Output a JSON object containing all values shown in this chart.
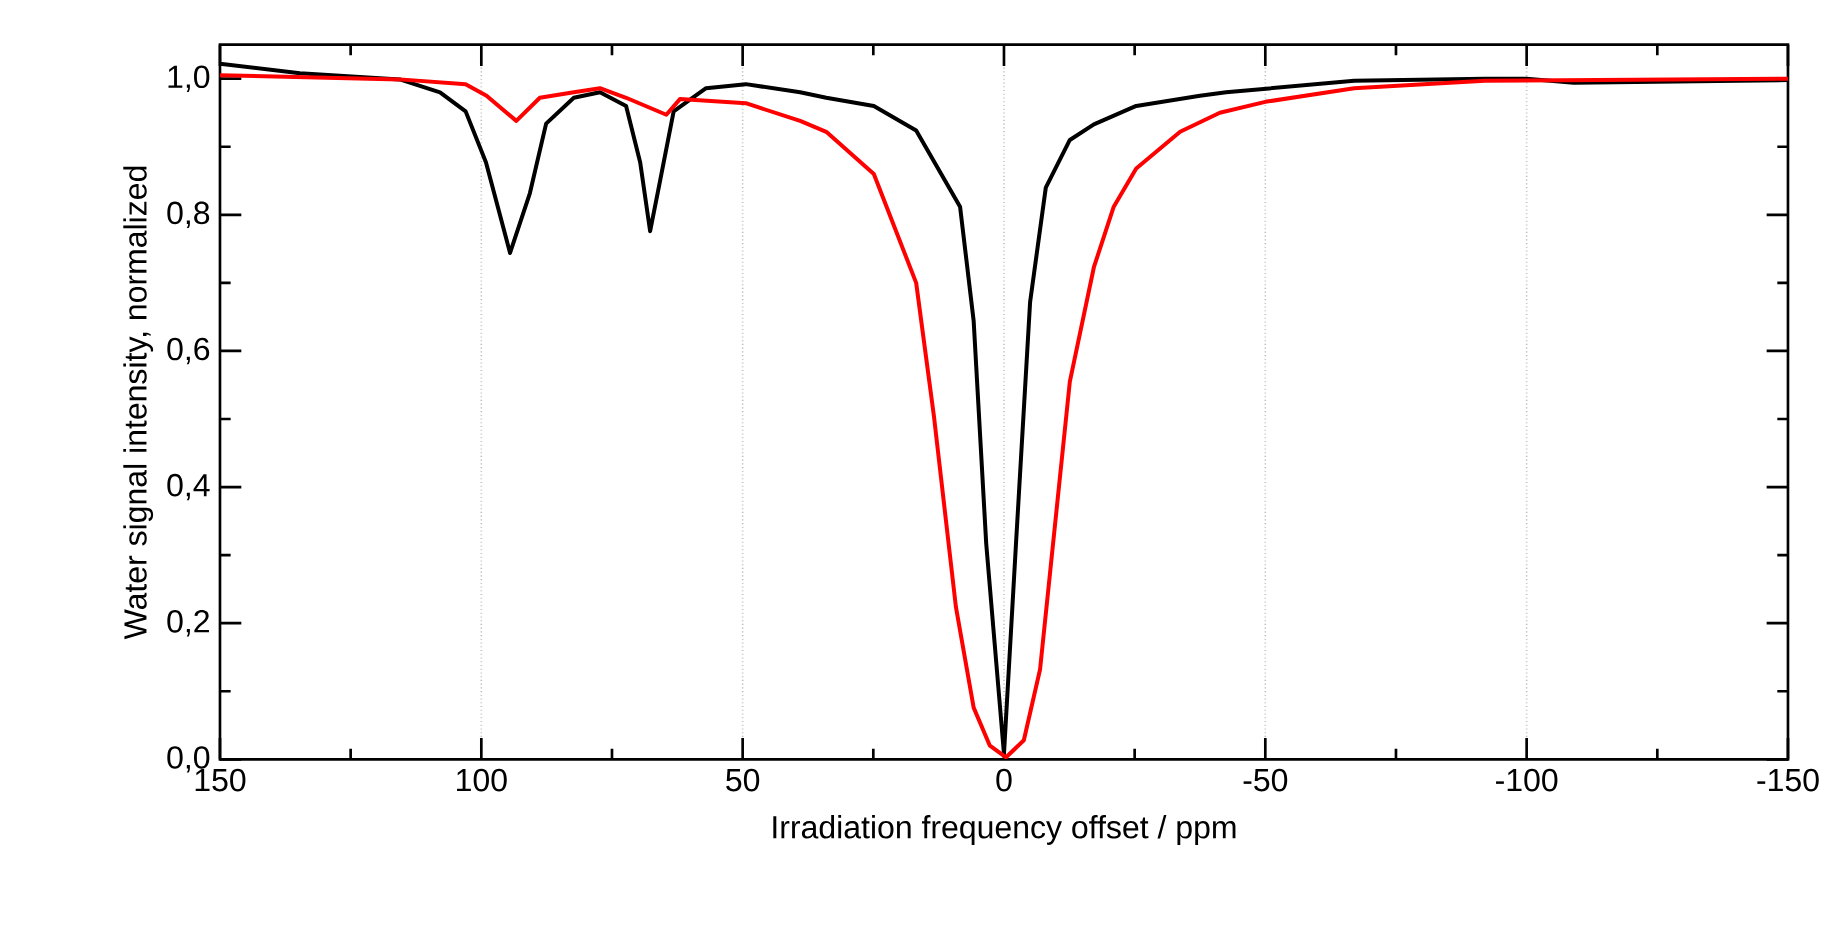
{
  "chart_data": {
    "type": "line",
    "xlabel": "Irradiation frequency offset / ppm",
    "ylabel": "Water signal intensity, normalized",
    "xlim": [
      150,
      -150
    ],
    "ylim": [
      0,
      1.05
    ],
    "xticks": [
      150,
      100,
      50,
      0,
      -50,
      -100,
      -150
    ],
    "yticks": [
      {
        "value": 0,
        "label": "0,0"
      },
      {
        "value": 0.2,
        "label": "0,2"
      },
      {
        "value": 0.4,
        "label": "0,4"
      },
      {
        "value": 0.6,
        "label": "0,6"
      },
      {
        "value": 0.8,
        "label": "0,8"
      },
      {
        "value": 1.0,
        "label": "1,0"
      }
    ],
    "grid": "x",
    "marker": "none",
    "line_style": "solid",
    "series": [
      {
        "color": "#000000",
        "x": [
          150,
          134.7,
          115.6,
          107.9,
          103,
          99.1,
          94.5,
          90.7,
          87.6,
          82.3,
          77.3,
          72.3,
          69.6,
          67.7,
          65.8,
          63.2,
          57,
          49.4,
          39,
          34,
          24.9,
          16.8,
          8.4,
          5.8,
          3.4,
          0,
          -2.3,
          -5,
          -8,
          -12.6,
          -17.2,
          -25.3,
          -37.5,
          -42.5,
          -67,
          -92,
          -100,
          -109,
          -150
        ],
        "values": [
          1.022,
          1.008,
          0.999,
          0.98,
          0.952,
          0.877,
          0.744,
          0.832,
          0.934,
          0.972,
          0.98,
          0.96,
          0.877,
          0.776,
          0.85,
          0.952,
          0.986,
          0.992,
          0.98,
          0.972,
          0.96,
          0.924,
          0.812,
          0.644,
          0.317,
          0.008,
          0.317,
          0.672,
          0.84,
          0.91,
          0.933,
          0.96,
          0.975,
          0.98,
          0.997,
          1.0,
          1.0,
          0.994,
          0.998
        ]
      },
      {
        "color": "#ff0000",
        "x": [
          150,
          115.6,
          103,
          99,
          93.3,
          88.8,
          82.3,
          77.3,
          72.3,
          64.6,
          62,
          49.4,
          39,
          34,
          24.9,
          16.8,
          13.4,
          9.2,
          5.8,
          2.7,
          -0.4,
          -3.8,
          -6.9,
          -12.6,
          -17.2,
          -21,
          -25.3,
          -33.7,
          -41.3,
          -50,
          -67,
          -92,
          -150
        ],
        "values": [
          1.005,
          0.999,
          0.992,
          0.975,
          0.938,
          0.972,
          0.98,
          0.986,
          0.972,
          0.947,
          0.97,
          0.964,
          0.938,
          0.922,
          0.86,
          0.7,
          0.504,
          0.224,
          0.076,
          0.02,
          0.003,
          0.028,
          0.132,
          0.555,
          0.723,
          0.812,
          0.868,
          0.922,
          0.95,
          0.966,
          0.986,
          0.997,
          1.0
        ]
      }
    ]
  }
}
